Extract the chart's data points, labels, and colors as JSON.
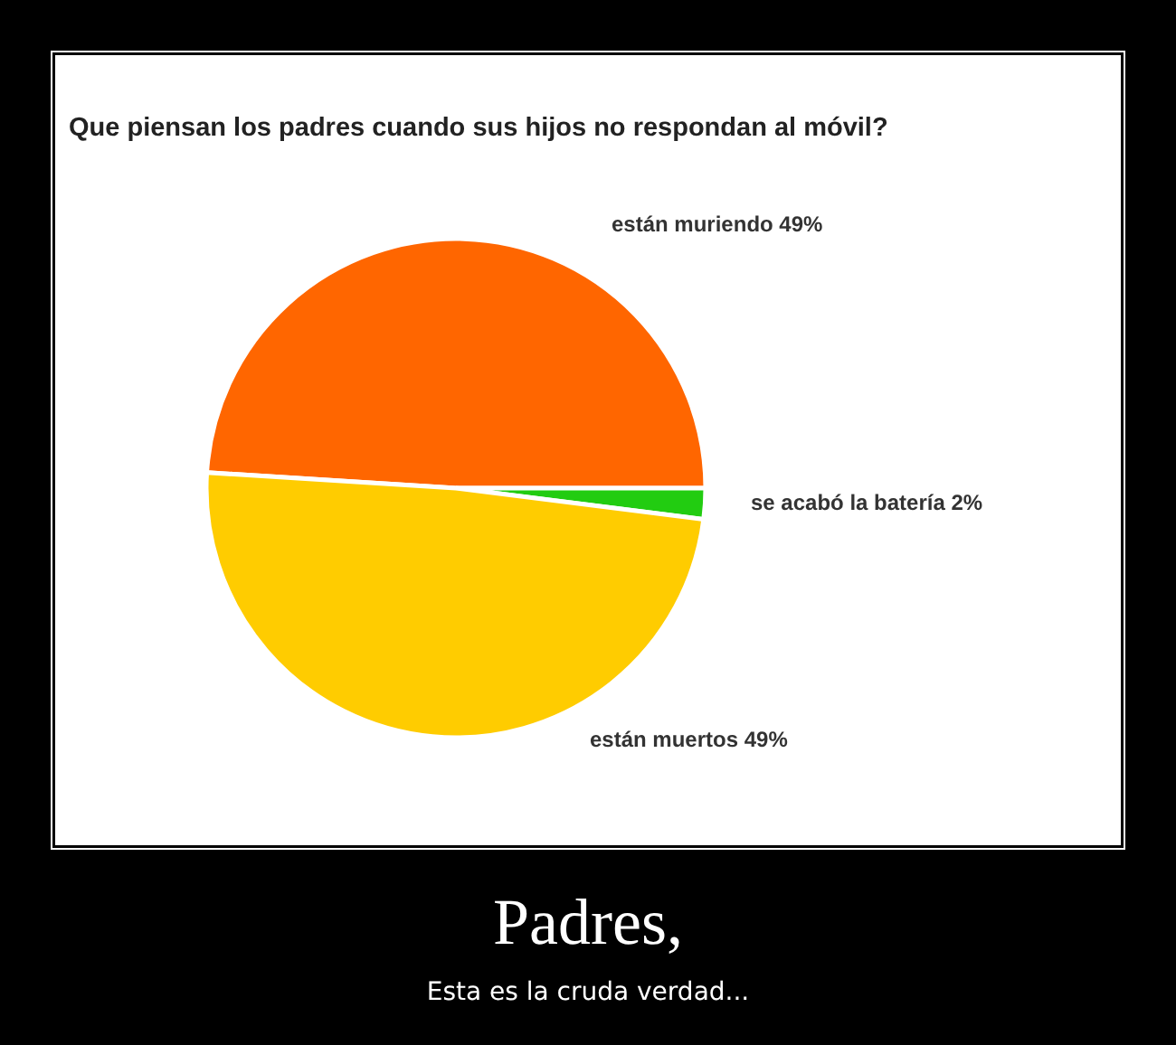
{
  "chart_data": {
    "type": "pie",
    "title": "Que piensan los padres cuando sus hijos no respondan al móvil?",
    "categories": [
      "están muriendo",
      "se acabó la batería",
      "están muertos"
    ],
    "values": [
      49,
      2,
      49
    ],
    "value_labels": [
      "49%",
      "2%",
      "49%"
    ],
    "colors": [
      "#ff6600",
      "#22cc11",
      "#ffcc00"
    ],
    "annotations": [
      "Padres,",
      "Esta es la cruda verdad..."
    ]
  }
}
